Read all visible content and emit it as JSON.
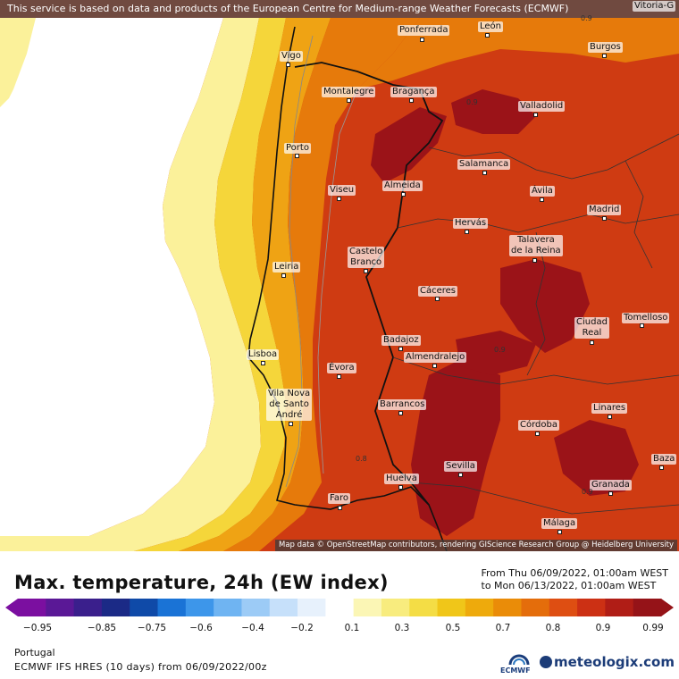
{
  "map": {
    "attribution_top": "This service is based on data and products of the European Centre for Medium-range Weather Forecasts (ECMWF)",
    "attribution_bottom": "Map data © OpenStreetMap contributors, rendering GIScience Research Group @ Heidelberg University",
    "cities": [
      {
        "name": "Vitoria-G"
      },
      {
        "name": "Ponferrada"
      },
      {
        "name": "León"
      },
      {
        "name": "Burgos"
      },
      {
        "name": "Vigo"
      },
      {
        "name": "Montalegre"
      },
      {
        "name": "Bragança"
      },
      {
        "name": "Valladolid"
      },
      {
        "name": "Porto"
      },
      {
        "name": "Salamanca"
      },
      {
        "name": "Viseu"
      },
      {
        "name": "Almeida"
      },
      {
        "name": "Ávila"
      },
      {
        "name": "Madrid"
      },
      {
        "name": "Hervás"
      },
      {
        "name": "Talavera\nde la Reina"
      },
      {
        "name": "Leiria"
      },
      {
        "name": "Castelo\nBranco"
      },
      {
        "name": "Cáceres"
      },
      {
        "name": "Tomelloso"
      },
      {
        "name": "Ciudad\nReal"
      },
      {
        "name": "Badajoz"
      },
      {
        "name": "Lisboa"
      },
      {
        "name": "Almendralejo"
      },
      {
        "name": "Évora"
      },
      {
        "name": "Vila Nova\nde Santo\nAndré"
      },
      {
        "name": "Barrancos"
      },
      {
        "name": "Linares"
      },
      {
        "name": "Córdoba"
      },
      {
        "name": "Sevilla"
      },
      {
        "name": "Baza"
      },
      {
        "name": "Granada"
      },
      {
        "name": "Huelva"
      },
      {
        "name": "Faro"
      },
      {
        "name": "Málaga"
      }
    ],
    "contour_labels": [
      "0.9",
      "0.9",
      "0.9",
      "0.8",
      "0.9"
    ]
  },
  "legend": {
    "title": "Max. temperature, 24h (EW index)",
    "from": "From Thu 06/09/2022, 01:00am WEST",
    "to": "to Mon 06/13/2022, 01:00am WEST",
    "scale_labels": [
      "−0.95",
      "−0.85",
      "−0.75",
      "−0.6",
      "−0.4",
      "−0.2",
      "0.1",
      "0.3",
      "0.5",
      "0.7",
      "0.8",
      "0.9",
      "0.99"
    ],
    "colors": [
      "#7b0fa0",
      "#5a1896",
      "#3a1f8c",
      "#1b2a86",
      "#0f4aa8",
      "#1a73d6",
      "#3d96ea",
      "#6fb4f2",
      "#9ccbf6",
      "#c6e0fa",
      "#e7f1fc",
      "#ffffff",
      "#fbf6b5",
      "#f8ec7e",
      "#f4dd45",
      "#f0c619",
      "#eeaa0c",
      "#ea8c08",
      "#e46d0b",
      "#de4e12",
      "#cc3014",
      "#b01d16",
      "#951318"
    ]
  },
  "footer": {
    "region": "Portugal",
    "model": "ECMWF IFS HRES (10 days) from 06/09/2022/00z",
    "ecmwf_label": "ECMWF",
    "brand": "meteologix.com"
  }
}
